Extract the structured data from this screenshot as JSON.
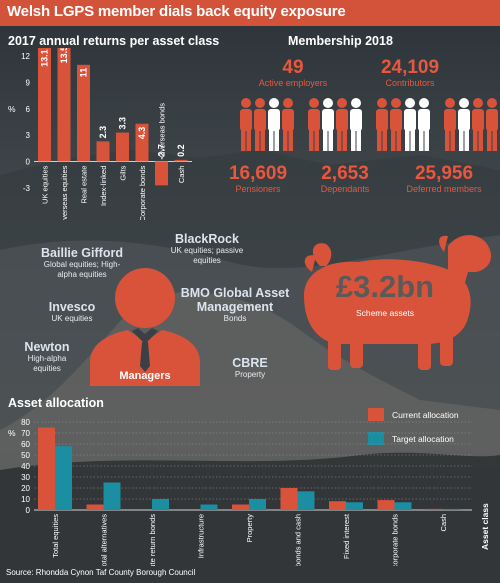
{
  "title": "Welsh LGPS member dials back equity exposure",
  "returns_section": {
    "heading": "2017 annual returns per asset class",
    "unit": "%"
  },
  "membership": {
    "heading": "Membership 2018",
    "stats": [
      {
        "value": "49",
        "label": "Active employers"
      },
      {
        "value": "24,109",
        "label": "Contributors"
      },
      {
        "value": "16,609",
        "label": "Pensioners"
      },
      {
        "value": "2,653",
        "label": "Dependants"
      },
      {
        "value": "25,956",
        "label": "Deferred members"
      }
    ]
  },
  "managers": {
    "label": "Managers",
    "list": [
      {
        "name": "Baillie Gifford",
        "desc": "Global equities; High-alpha equities"
      },
      {
        "name": "BlackRock",
        "desc": "UK equities; passive equities"
      },
      {
        "name": "Invesco",
        "desc": "UK equities"
      },
      {
        "name": "BMO Global Asset Management",
        "desc": "Bonds"
      },
      {
        "name": "Newton",
        "desc": "High-alpha equities"
      },
      {
        "name": "CBRE",
        "desc": "Property"
      }
    ]
  },
  "scheme": {
    "value": "£3.2bn",
    "label": "Scheme assets"
  },
  "allocation_section": {
    "heading": "Asset allocation",
    "unit": "%",
    "xlabel": "Asset class"
  },
  "source": "Source: Rhondda Cynon Taf County Borough Council",
  "colors": {
    "accent": "#d3523a",
    "bar_current": "#d9533b",
    "bar_target": "#1b8ea1",
    "text": "#ffffff"
  },
  "icons": [
    "person-icon",
    "manager-silhouette-icon",
    "sheep-icon"
  ],
  "chart_data": [
    {
      "type": "bar",
      "title": "2017 annual returns per asset class",
      "ylabel": "%",
      "categories": [
        "UK equities",
        "Overseas equities",
        "Real estate",
        "Index-linked",
        "Gilts",
        "Corporate bonds",
        "Overseas bonds",
        "Cash"
      ],
      "values": [
        13.1,
        13.5,
        11,
        2.3,
        3.3,
        4.3,
        -2.7,
        0.2
      ],
      "data_labels": [
        "13.1",
        "13.5",
        "11",
        "2.3",
        "3.3",
        "4.3",
        "-2.7",
        "0.2"
      ],
      "ylim": [
        -3,
        12
      ],
      "yticks": [
        "12",
        "9",
        "6",
        "3",
        "0",
        "-3"
      ],
      "grid": false
    },
    {
      "type": "bar",
      "title": "Asset allocation",
      "ylabel": "%",
      "xlabel": "Asset class",
      "categories": [
        "Total equities",
        "Total alternatives",
        "Absolute return bonds",
        "Infrastructure",
        "Property",
        "Total bonds and cash",
        "Fixed interest",
        "UK corporate bonds",
        "Cash"
      ],
      "series": [
        {
          "name": "Current allocation",
          "values": [
            75,
            5,
            0,
            0,
            5,
            20,
            8,
            9,
            1
          ]
        },
        {
          "name": "Target allocation",
          "values": [
            58,
            25,
            10,
            5,
            10,
            17,
            7,
            7,
            1
          ]
        }
      ],
      "ylim": [
        0,
        80
      ],
      "yticks": [
        "80",
        "70",
        "60",
        "50",
        "40",
        "30",
        "20",
        "10",
        "0"
      ],
      "legend": "top-right",
      "grid": true
    }
  ]
}
